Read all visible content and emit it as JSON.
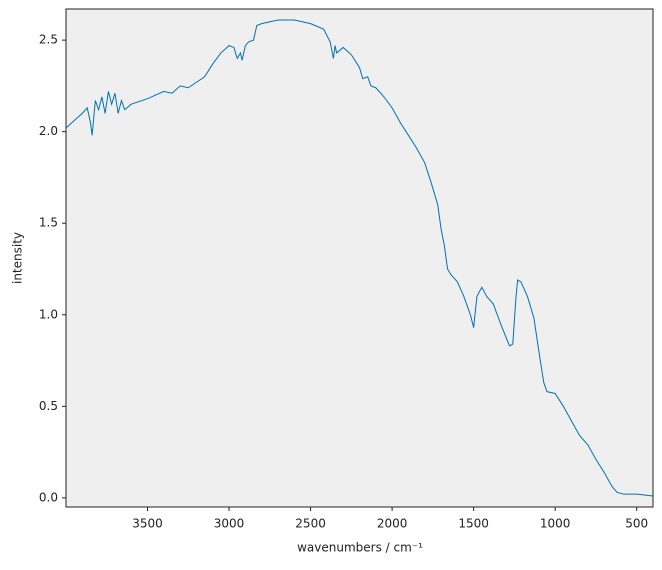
{
  "chart_data": {
    "type": "line",
    "x_label": "wavenumbers / cm⁻¹",
    "y_label": "intensity",
    "x": [
      4000,
      3950,
      3900,
      3870,
      3850,
      3840,
      3820,
      3800,
      3780,
      3760,
      3740,
      3720,
      3700,
      3680,
      3660,
      3640,
      3600,
      3500,
      3400,
      3350,
      3300,
      3250,
      3200,
      3150,
      3100,
      3050,
      3000,
      2970,
      2950,
      2930,
      2920,
      2900,
      2880,
      2850,
      2830,
      2800,
      2700,
      2600,
      2500,
      2420,
      2380,
      2360,
      2350,
      2340,
      2300,
      2250,
      2200,
      2180,
      2150,
      2130,
      2100,
      2050,
      2000,
      1950,
      1900,
      1850,
      1800,
      1760,
      1720,
      1700,
      1680,
      1660,
      1640,
      1600,
      1560,
      1520,
      1500,
      1480,
      1450,
      1420,
      1380,
      1330,
      1280,
      1260,
      1240,
      1230,
      1210,
      1170,
      1130,
      1100,
      1070,
      1050,
      1000,
      950,
      900,
      850,
      800,
      750,
      700,
      650,
      620,
      580,
      500,
      400
    ],
    "series": [
      {
        "color": "#0072b2",
        "values": [
          2.02,
          2.06,
          2.1,
          2.13,
          2.05,
          1.98,
          2.17,
          2.12,
          2.19,
          2.1,
          2.22,
          2.15,
          2.21,
          2.1,
          2.17,
          2.12,
          2.15,
          2.18,
          2.22,
          2.21,
          2.25,
          2.24,
          2.27,
          2.3,
          2.37,
          2.43,
          2.47,
          2.46,
          2.4,
          2.43,
          2.39,
          2.47,
          2.49,
          2.5,
          2.58,
          2.59,
          2.61,
          2.61,
          2.59,
          2.56,
          2.49,
          2.4,
          2.47,
          2.43,
          2.46,
          2.42,
          2.35,
          2.29,
          2.3,
          2.25,
          2.24,
          2.19,
          2.13,
          2.05,
          1.98,
          1.91,
          1.83,
          1.72,
          1.6,
          1.47,
          1.38,
          1.25,
          1.22,
          1.18,
          1.1,
          1.0,
          0.93,
          1.1,
          1.15,
          1.1,
          1.06,
          0.94,
          0.83,
          0.84,
          1.1,
          1.19,
          1.18,
          1.1,
          0.98,
          0.8,
          0.63,
          0.58,
          0.57,
          0.5,
          0.42,
          0.34,
          0.29,
          0.21,
          0.14,
          0.06,
          0.03,
          0.02,
          0.02,
          0.01
        ]
      }
    ],
    "xlim": [
      4000,
      400
    ],
    "xticks": [
      3500,
      3000,
      2500,
      2000,
      1500,
      1000,
      500
    ],
    "ylim": [
      -0.05,
      2.67
    ],
    "yticks": [
      {
        "value": 0,
        "label": "0.0"
      },
      0.5,
      {
        "value": 1,
        "label": "1.0"
      },
      1.5,
      {
        "value": 2,
        "label": "2.0"
      },
      2.5
    ],
    "grid": false
  }
}
